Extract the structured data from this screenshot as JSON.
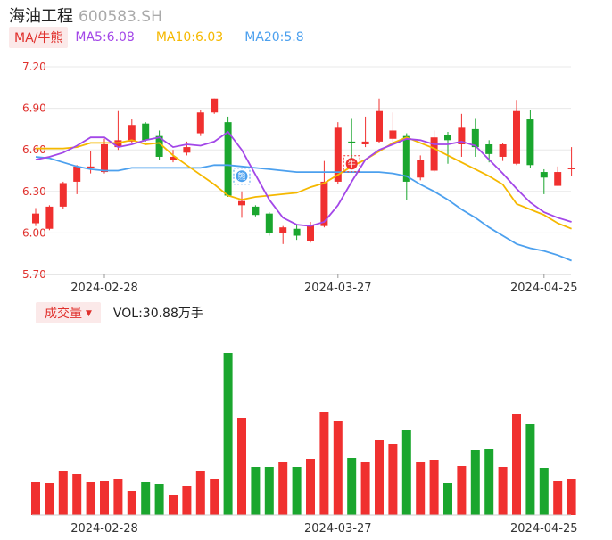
{
  "header": {
    "name": "海油工程",
    "code": "600583.SH"
  },
  "ma_legend": {
    "tag": "MA/牛熊",
    "ma5": "MA5:6.08",
    "ma10": "MA10:6.03",
    "ma20": "MA20:5.8",
    "colors": {
      "ma5": "#a347e8",
      "ma10": "#f5b800",
      "ma20": "#4ca0ee"
    }
  },
  "volume_legend": {
    "tag": "成交量",
    "text": "VOL:30.88万手"
  },
  "markers": {
    "bear": "熊",
    "bull": "牛"
  },
  "colors": {
    "up": "#f0302f",
    "down": "#1aa62e"
  },
  "chart_data": [
    {
      "type": "candlestick",
      "y_ticks": [
        "7.20",
        "6.90",
        "6.60",
        "6.30",
        "6.00",
        "5.70"
      ],
      "ylim": [
        5.7,
        7.2
      ],
      "x_tick_labels": [
        {
          "label": "2024-02-28",
          "index": 5
        },
        {
          "label": "2024-03-27",
          "index": 22
        },
        {
          "label": "2024-04-25",
          "index": 37
        }
      ],
      "candles": [
        [
          6.07,
          6.14,
          6.18,
          6.05
        ],
        [
          6.03,
          6.19,
          6.2,
          6.02
        ],
        [
          6.19,
          6.36,
          6.37,
          6.17
        ],
        [
          6.37,
          6.48,
          6.49,
          6.28
        ],
        [
          6.48,
          6.48,
          6.59,
          6.43
        ],
        [
          6.44,
          6.64,
          6.68,
          6.43
        ],
        [
          6.62,
          6.67,
          6.88,
          6.6
        ],
        [
          6.66,
          6.78,
          6.82,
          6.65
        ],
        [
          6.79,
          6.67,
          6.8,
          6.66
        ],
        [
          6.7,
          6.55,
          6.74,
          6.53
        ],
        [
          6.53,
          6.55,
          6.6,
          6.51
        ],
        [
          6.58,
          6.62,
          6.66,
          6.56
        ],
        [
          6.72,
          6.87,
          6.89,
          6.7
        ],
        [
          6.87,
          6.97,
          6.97,
          6.86
        ],
        [
          6.8,
          6.27,
          6.84,
          6.26
        ],
        [
          6.2,
          6.23,
          6.3,
          6.11
        ],
        [
          6.19,
          6.13,
          6.2,
          6.12
        ],
        [
          6.14,
          6.0,
          6.15,
          5.98
        ],
        [
          6.0,
          6.04,
          6.05,
          5.92
        ],
        [
          6.03,
          5.98,
          6.06,
          5.95
        ],
        [
          5.94,
          6.06,
          6.08,
          5.93
        ],
        [
          6.05,
          6.37,
          6.52,
          6.04
        ],
        [
          6.37,
          6.76,
          6.8,
          6.35
        ],
        [
          6.66,
          6.65,
          6.83,
          6.5
        ],
        [
          6.64,
          6.66,
          6.84,
          6.62
        ],
        [
          6.66,
          6.88,
          6.97,
          6.65
        ],
        [
          6.68,
          6.74,
          6.87,
          6.64
        ],
        [
          6.7,
          6.37,
          6.72,
          6.24
        ],
        [
          6.4,
          6.53,
          6.56,
          6.38
        ],
        [
          6.45,
          6.69,
          6.74,
          6.44
        ],
        [
          6.71,
          6.67,
          6.73,
          6.5
        ],
        [
          6.64,
          6.76,
          6.86,
          6.55
        ],
        [
          6.75,
          6.62,
          6.83,
          6.55
        ],
        [
          6.64,
          6.57,
          6.67,
          6.51
        ],
        [
          6.55,
          6.64,
          6.65,
          6.52
        ],
        [
          6.5,
          6.88,
          6.96,
          6.49
        ],
        [
          6.82,
          6.49,
          6.89,
          6.47
        ],
        [
          6.44,
          6.4,
          6.46,
          6.28
        ],
        [
          6.34,
          6.44,
          6.48,
          6.34
        ],
        [
          6.46,
          6.47,
          6.62,
          6.41
        ]
      ],
      "ma5": [
        6.53,
        6.55,
        6.58,
        6.63,
        6.69,
        6.69,
        6.62,
        6.64,
        6.67,
        6.69,
        6.62,
        6.64,
        6.63,
        6.66,
        6.73,
        6.6,
        6.42,
        6.24,
        6.11,
        6.06,
        6.05,
        6.08,
        6.2,
        6.37,
        6.53,
        6.6,
        6.64,
        6.68,
        6.67,
        6.64,
        6.64,
        6.66,
        6.63,
        6.53,
        6.43,
        6.32,
        6.22,
        6.15,
        6.11,
        6.08
      ],
      "ma10": [
        6.61,
        6.61,
        6.61,
        6.62,
        6.65,
        6.65,
        6.65,
        6.67,
        6.64,
        6.65,
        6.56,
        6.49,
        6.42,
        6.35,
        6.27,
        6.24,
        6.26,
        6.27,
        6.28,
        6.29,
        6.33,
        6.36,
        6.42,
        6.48,
        6.53,
        6.59,
        6.65,
        6.69,
        6.65,
        6.61,
        6.56,
        6.51,
        6.46,
        6.41,
        6.35,
        6.21,
        6.17,
        6.13,
        6.07,
        6.03
      ],
      "ma20": [
        6.55,
        6.54,
        6.51,
        6.48,
        6.46,
        6.45,
        6.45,
        6.47,
        6.47,
        6.47,
        6.47,
        6.47,
        6.47,
        6.49,
        6.49,
        6.48,
        6.47,
        6.46,
        6.45,
        6.44,
        6.44,
        6.44,
        6.44,
        6.44,
        6.44,
        6.44,
        6.43,
        6.41,
        6.35,
        6.3,
        6.24,
        6.17,
        6.11,
        6.04,
        5.98,
        5.92,
        5.89,
        5.87,
        5.84,
        5.8
      ],
      "bear_marker": {
        "index": 15,
        "price": 6.41
      },
      "bull_marker": {
        "index": 23,
        "price": 6.5
      }
    },
    {
      "type": "bar",
      "series_name": "成交量",
      "x_tick_labels": [
        {
          "label": "2024-02-28",
          "index": 5
        },
        {
          "label": "2024-03-27",
          "index": 22
        },
        {
          "label": "2024-04-25",
          "index": 37
        }
      ],
      "values": [
        37,
        36,
        49,
        46,
        37,
        38,
        40,
        27,
        37,
        35,
        23,
        33,
        49,
        41,
        182,
        109,
        54,
        54,
        59,
        54,
        63,
        116,
        105,
        64,
        60,
        84,
        80,
        96,
        60,
        62,
        36,
        55,
        73,
        74,
        54,
        113,
        102,
        53,
        38,
        40
      ]
    }
  ]
}
